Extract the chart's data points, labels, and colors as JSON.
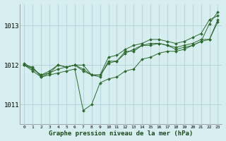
{
  "background_color": "#d6eef0",
  "grid_color": "#aaccd4",
  "line_color": "#2d6a2d",
  "marker_color": "#2d6a2d",
  "xlabel": "Graphe pression niveau de la mer (hPa)",
  "xlim": [
    -0.5,
    23.5
  ],
  "ylim": [
    1010.5,
    1013.55
  ],
  "yticks": [
    1011,
    1012,
    1013
  ],
  "xticks": [
    0,
    1,
    2,
    3,
    4,
    5,
    6,
    7,
    8,
    9,
    10,
    11,
    12,
    13,
    14,
    15,
    16,
    17,
    18,
    19,
    20,
    21,
    22,
    23
  ],
  "series": [
    {
      "x": [
        0,
        1,
        2,
        3,
        4,
        5,
        6,
        7,
        8,
        9,
        10,
        11,
        12,
        13,
        14,
        15,
        16,
        17,
        18,
        19,
        20,
        21,
        22,
        23
      ],
      "y": [
        1012.0,
        1011.95,
        1011.7,
        1011.75,
        1011.8,
        1011.85,
        1011.9,
        1010.85,
        1011.0,
        1011.55,
        1011.65,
        1011.7,
        1011.85,
        1011.9,
        1012.15,
        1012.2,
        1012.3,
        1012.35,
        1012.35,
        1012.4,
        1012.5,
        1012.6,
        1013.05,
        1013.35
      ]
    },
    {
      "x": [
        0,
        1,
        2,
        3,
        4,
        5,
        6,
        7,
        8,
        9,
        10,
        11,
        12,
        13,
        14,
        15,
        16,
        17,
        18,
        19,
        20,
        21,
        22,
        23
      ],
      "y": [
        1012.0,
        1011.9,
        1011.75,
        1011.8,
        1011.9,
        1011.95,
        1012.0,
        1011.9,
        1011.75,
        1011.75,
        1012.05,
        1012.1,
        1012.3,
        1012.4,
        1012.5,
        1012.55,
        1012.55,
        1012.5,
        1012.45,
        1012.5,
        1012.55,
        1012.65,
        1012.65,
        1013.1
      ]
    },
    {
      "x": [
        0,
        2,
        3,
        4,
        5,
        6,
        7,
        8,
        9,
        10,
        11,
        12,
        13,
        14,
        15,
        16,
        17,
        18,
        19,
        20,
        21,
        22,
        23
      ],
      "y": [
        1012.05,
        1011.75,
        1011.85,
        1012.0,
        1011.95,
        1012.0,
        1012.0,
        1011.75,
        1011.75,
        1012.2,
        1012.25,
        1012.4,
        1012.5,
        1012.55,
        1012.65,
        1012.65,
        1012.6,
        1012.55,
        1012.6,
        1012.7,
        1012.8,
        1013.15,
        1013.25
      ]
    },
    {
      "x": [
        0,
        1,
        2,
        3,
        4,
        5,
        6,
        7,
        8,
        9,
        10,
        11,
        12,
        13,
        14,
        15,
        16,
        17,
        18,
        19,
        20,
        21,
        22,
        23
      ],
      "y": [
        1012.0,
        1011.85,
        1011.7,
        1011.8,
        1012.0,
        1011.95,
        1012.0,
        1011.85,
        1011.75,
        1011.7,
        1012.1,
        1012.1,
        1012.35,
        1012.35,
        1012.5,
        1012.5,
        1012.55,
        1012.5,
        1012.4,
        1012.45,
        1012.5,
        1012.6,
        1012.65,
        1013.15
      ]
    }
  ]
}
